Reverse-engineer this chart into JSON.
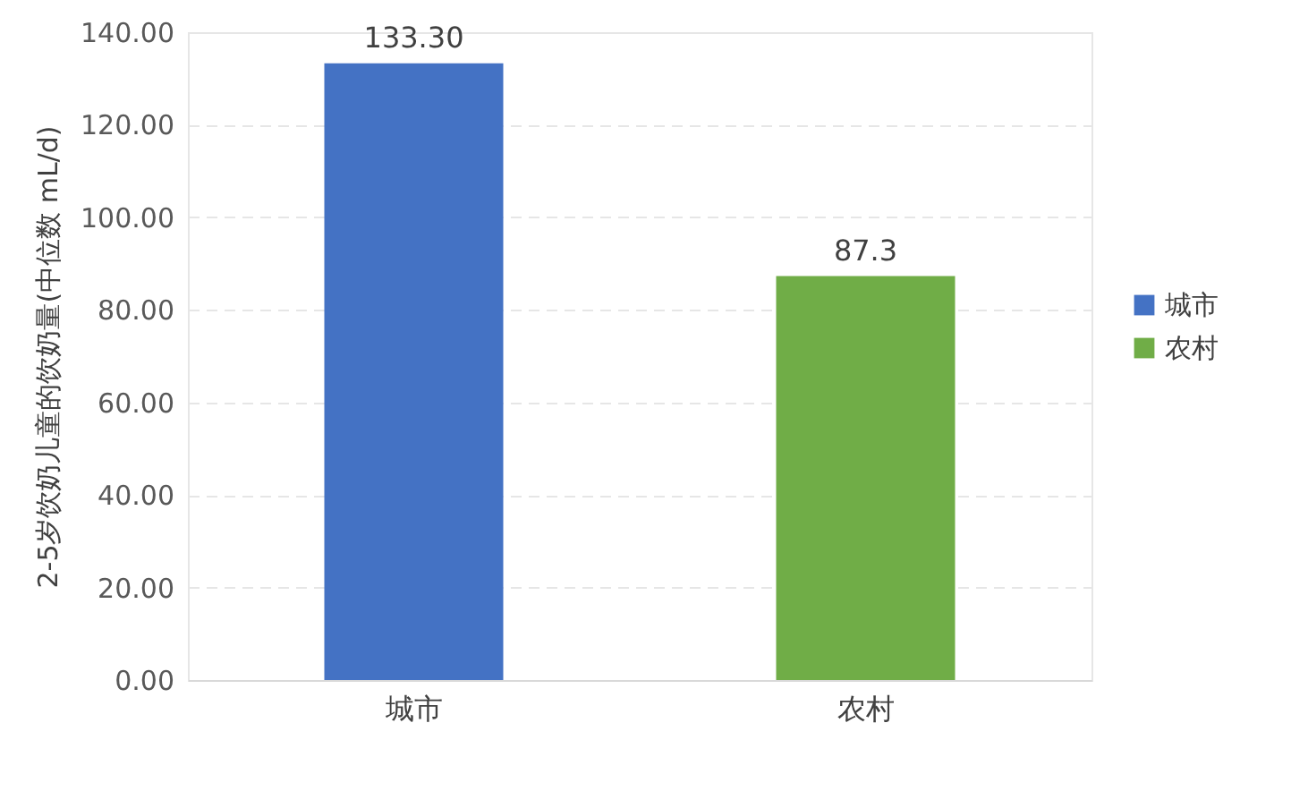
{
  "chart_data": {
    "type": "bar",
    "ylabel": "2-5岁饮奶儿童的饮奶量(中位数 mL/d)",
    "categories": [
      "城市",
      "农村"
    ],
    "series": [
      {
        "name": "城市",
        "color": "#4472c4",
        "values": [
          133.3,
          null
        ],
        "value_labels": [
          "133.30",
          null
        ]
      },
      {
        "name": "农村",
        "color": "#70ad47",
        "values": [
          null,
          87.3
        ],
        "value_labels": [
          null,
          "87.3"
        ]
      }
    ],
    "ylim": [
      0,
      140
    ],
    "yticks": [
      {
        "value": 0,
        "label": "0.00"
      },
      {
        "value": 20,
        "label": "20.00"
      },
      {
        "value": 40,
        "label": "40.00"
      },
      {
        "value": 60,
        "label": "60.00"
      },
      {
        "value": 80,
        "label": "80.00"
      },
      {
        "value": 100,
        "label": "100.00"
      },
      {
        "value": 120,
        "label": "120.00"
      },
      {
        "value": 140,
        "label": "140.00"
      }
    ],
    "grid": "y",
    "legend": "right"
  }
}
